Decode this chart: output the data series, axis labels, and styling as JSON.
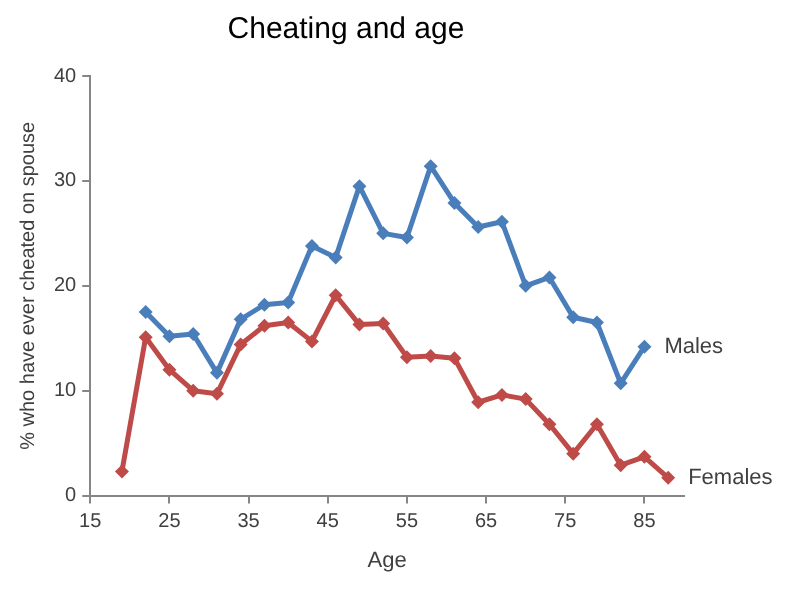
{
  "chart_data": {
    "type": "line",
    "title": "Cheating and age",
    "xlabel": "Age",
    "ylabel": "% who have ever cheated on spouse",
    "xlim": [
      15,
      90
    ],
    "xticks": [
      15,
      25,
      35,
      45,
      55,
      65,
      75,
      85
    ],
    "ylim": [
      0,
      40
    ],
    "yticks": [
      0,
      10,
      20,
      30,
      40
    ],
    "grid": false,
    "legend": false,
    "marker": "diamond",
    "line_style": "solid",
    "series": [
      {
        "name": "Males",
        "color": "#4a7ebb",
        "x": [
          22,
          25,
          28,
          31,
          34,
          37,
          40,
          43,
          46,
          49,
          52,
          55,
          58,
          61,
          64,
          67,
          70,
          73,
          76,
          79,
          82,
          85
        ],
        "values": [
          17.5,
          15.2,
          15.4,
          11.7,
          16.8,
          18.2,
          18.4,
          23.8,
          22.7,
          29.5,
          25,
          24.6,
          31.4,
          27.9,
          25.6,
          26.1,
          20,
          20.8,
          17,
          16.5,
          10.7,
          14.2
        ]
      },
      {
        "name": "Females",
        "color": "#be4b48",
        "x": [
          19,
          22,
          25,
          28,
          31,
          34,
          37,
          40,
          43,
          46,
          49,
          52,
          55,
          58,
          61,
          64,
          67,
          70,
          73,
          76,
          79,
          82,
          85,
          88
        ],
        "values": [
          2.3,
          15.1,
          12,
          10,
          9.7,
          14.4,
          16.2,
          16.5,
          14.7,
          19.1,
          16.3,
          16.4,
          13.2,
          13.3,
          13.1,
          8.9,
          9.6,
          9.2,
          6.8,
          4,
          6.8,
          2.9,
          3.7,
          1.7
        ]
      }
    ]
  }
}
